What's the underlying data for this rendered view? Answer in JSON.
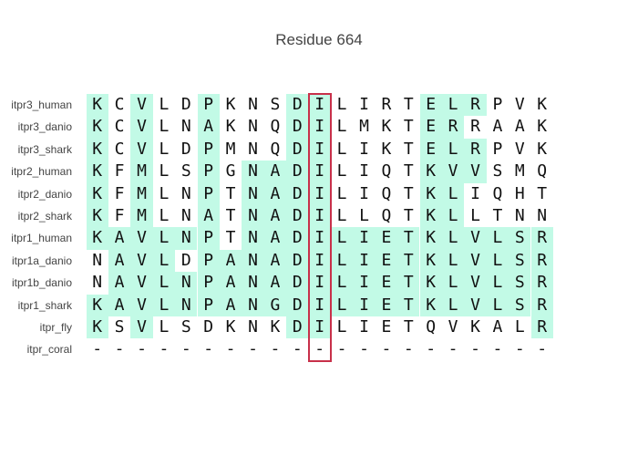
{
  "title": "Residue 664",
  "colors": {
    "conserved": "#c2fae6",
    "highlight": "#c8304a"
  },
  "highlight_column": 10,
  "chart_data": {
    "type": "table",
    "title": "Residue 664",
    "rows": [
      {
        "label": "itpr3_human",
        "seq": "KCVLDPKNSDILIRTELRPVK",
        "shade": "101001000110000111000"
      },
      {
        "label": "itpr3_danio",
        "seq": "KCVLNAKNQDILMKTERRAAK",
        "shade": "101001000110000110000"
      },
      {
        "label": "itpr3_shark",
        "seq": "KCVLDPMNQDILIKTELRPVK",
        "shade": "101001000110000111000"
      },
      {
        "label": "itpr2_human",
        "seq": "KFMLSPGNADILIQTKVVSMQ",
        "shade": "101001011110000111000"
      },
      {
        "label": "itpr2_danio",
        "seq": "KFMLNPTNADILIQTKLIQHT",
        "shade": "101001011110000110000"
      },
      {
        "label": "itpr2_shark",
        "seq": "KFMLNATNADILLQTKLLTNN",
        "shade": "101001011110000110000"
      },
      {
        "label": "itpr1_human",
        "seq": "KAVLNPTNADILIETKLVLSR",
        "shade": "111111011111111111111"
      },
      {
        "label": "itpr1a_danio",
        "seq": "NAVLDPANADILIETKLVLSR",
        "shade": "011101111111111111111"
      },
      {
        "label": "itpr1b_danio",
        "seq": "NAVLNPANADILIETKLVLSR",
        "shade": "011111111111111111111"
      },
      {
        "label": "itpr1_shark",
        "seq": "KAVLNPANGDILIETKLVLSR",
        "shade": "111111111111111111111"
      },
      {
        "label": "itpr_fly",
        "seq": "KSVLSDKNKDILIETQVKALR",
        "shade": "101000000110000000001"
      },
      {
        "label": "itpr_coral",
        "seq": "---------------------",
        "shade": "000000000000000000000"
      }
    ]
  }
}
